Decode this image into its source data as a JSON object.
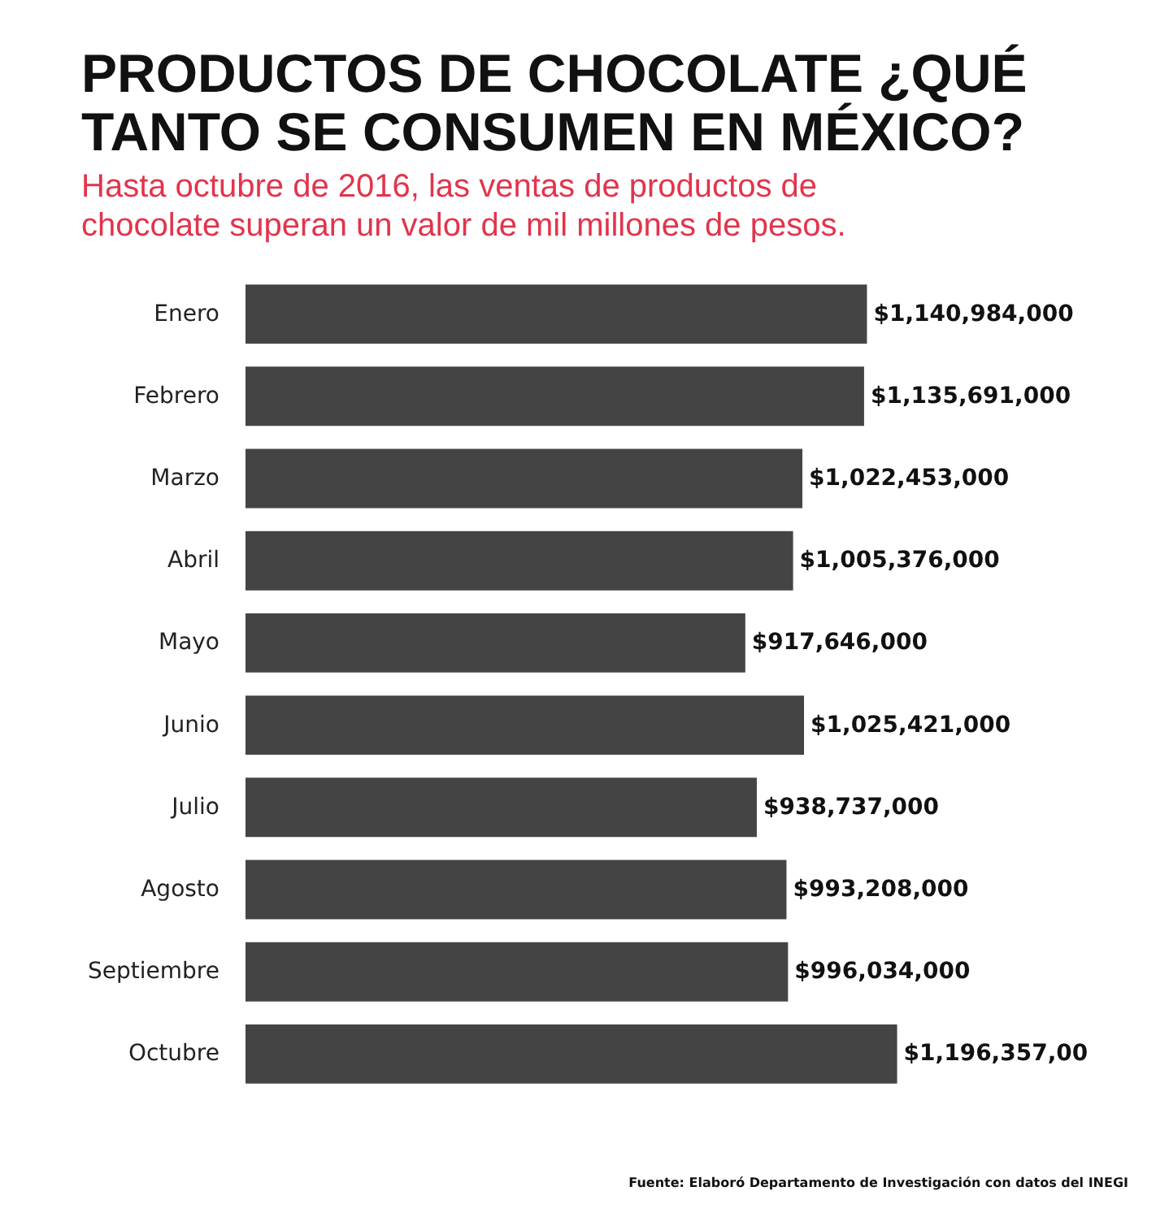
{
  "chart_data": {
    "type": "bar",
    "orientation": "horizontal",
    "title": "PRODUCTOS DE CHOCOLATE ¿QUÉ TANTO SE CONSUMEN EN MÉXICO?",
    "subtitle": "Hasta octubre de 2016, las ventas de productos de chocolate superan un valor de mil millones de pesos.",
    "categories": [
      "Enero",
      "Febrero",
      "Marzo",
      "Abril",
      "Mayo",
      "Junio",
      "Julio",
      "Agosto",
      "Septiembre",
      "Octubre"
    ],
    "values": [
      1140984000,
      1135691000,
      1022453000,
      1005376000,
      917646000,
      1025421000,
      938737000,
      993208000,
      996034000,
      1196357000
    ],
    "value_labels": [
      "$1,140,984,000",
      "$1,135,691,000",
      "$1,022,453,000",
      "$1,005,376,000",
      "$917,646,000",
      "$1,025,421,000",
      "$938,737,000",
      "$993,208,000",
      "$996,034,000",
      "$1,196,357,00"
    ],
    "color": "#444444",
    "annotations": [
      "Fuente: Elaboró Departamento de Investigación con datos del INEGI"
    ]
  }
}
